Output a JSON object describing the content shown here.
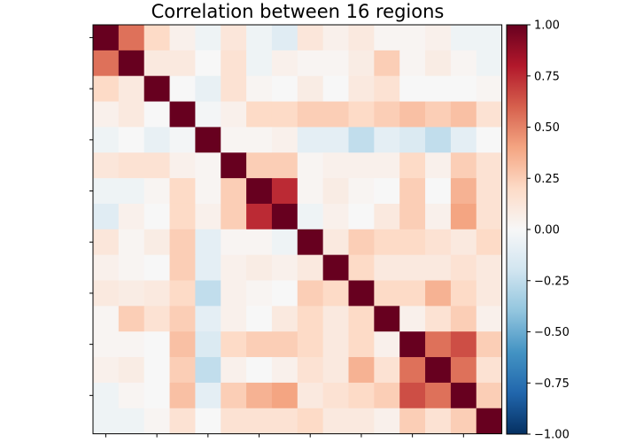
{
  "chart_data": {
    "type": "heatmap",
    "title": "Correlation between 16 regions",
    "xlabel": "",
    "ylabel": "",
    "colormap": "RdBu_r",
    "vmin": -1.0,
    "vmax": 1.0,
    "colorbar": {
      "ticks": [
        1.0,
        0.75,
        0.5,
        0.25,
        0.0,
        -0.25,
        -0.5,
        -0.75,
        -1.0
      ],
      "tick_labels": [
        "1.00",
        "0.75",
        "0.50",
        "0.25",
        "0.00",
        "−0.25",
        "−0.50",
        "−0.75",
        "−1.00"
      ]
    },
    "axis_tick_labels_shown": false,
    "grid": false,
    "matrix": [
      [
        1.0,
        0.55,
        0.2,
        0.05,
        -0.05,
        0.12,
        -0.05,
        -0.12,
        0.12,
        0.05,
        0.1,
        0.02,
        0.02,
        0.05,
        -0.05,
        -0.05
      ],
      [
        0.55,
        1.0,
        0.1,
        0.1,
        0.0,
        0.15,
        -0.05,
        0.05,
        0.02,
        0.02,
        0.08,
        0.25,
        0.02,
        0.08,
        0.02,
        -0.05
      ],
      [
        0.2,
        0.1,
        1.0,
        0.0,
        -0.08,
        0.15,
        0.02,
        0.0,
        0.08,
        0.0,
        0.1,
        0.15,
        0.0,
        0.0,
        0.0,
        0.02
      ],
      [
        0.05,
        0.1,
        0.0,
        1.0,
        -0.02,
        0.05,
        0.2,
        0.2,
        0.25,
        0.25,
        0.2,
        0.25,
        0.3,
        0.25,
        0.3,
        0.15
      ],
      [
        -0.05,
        0.0,
        -0.08,
        -0.02,
        1.0,
        0.02,
        0.02,
        0.05,
        -0.1,
        -0.1,
        -0.25,
        -0.1,
        -0.15,
        -0.25,
        -0.1,
        0.0
      ],
      [
        0.12,
        0.15,
        0.15,
        0.05,
        0.02,
        1.0,
        0.25,
        0.25,
        0.02,
        0.05,
        0.05,
        0.05,
        0.2,
        0.05,
        0.25,
        0.15
      ],
      [
        -0.05,
        -0.05,
        0.02,
        0.2,
        0.02,
        0.25,
        1.0,
        0.75,
        0.02,
        0.08,
        0.02,
        0.0,
        0.25,
        0.0,
        0.35,
        0.15
      ],
      [
        -0.12,
        0.05,
        0.0,
        0.2,
        0.05,
        0.25,
        0.75,
        1.0,
        -0.05,
        0.05,
        0.0,
        0.1,
        0.25,
        0.05,
        0.4,
        0.15
      ],
      [
        0.12,
        0.02,
        0.08,
        0.25,
        -0.1,
        0.02,
        0.02,
        -0.05,
        1.0,
        0.1,
        0.25,
        0.2,
        0.2,
        0.15,
        0.1,
        0.2
      ],
      [
        0.05,
        0.02,
        0.0,
        0.25,
        -0.1,
        0.05,
        0.08,
        0.05,
        0.1,
        1.0,
        0.2,
        0.1,
        0.1,
        0.1,
        0.15,
        0.1
      ],
      [
        0.1,
        0.08,
        0.1,
        0.2,
        -0.25,
        0.05,
        0.02,
        0.0,
        0.25,
        0.2,
        1.0,
        0.2,
        0.2,
        0.35,
        0.2,
        0.1
      ],
      [
        0.02,
        0.25,
        0.15,
        0.25,
        -0.1,
        0.05,
        0.0,
        0.1,
        0.2,
        0.1,
        0.2,
        1.0,
        0.05,
        0.15,
        0.25,
        0.05
      ],
      [
        0.02,
        0.02,
        0.0,
        0.3,
        -0.15,
        0.2,
        0.25,
        0.25,
        0.2,
        0.1,
        0.2,
        0.05,
        1.0,
        0.55,
        0.65,
        0.25
      ],
      [
        0.05,
        0.08,
        0.0,
        0.25,
        -0.25,
        0.05,
        0.0,
        0.05,
        0.15,
        0.1,
        0.35,
        0.15,
        0.55,
        1.0,
        0.55,
        0.15
      ],
      [
        -0.05,
        0.02,
        0.0,
        0.3,
        -0.1,
        0.25,
        0.35,
        0.4,
        0.1,
        0.15,
        0.2,
        0.25,
        0.65,
        0.55,
        1.0,
        0.25
      ],
      [
        -0.05,
        -0.05,
        0.02,
        0.15,
        0.0,
        0.15,
        0.15,
        0.15,
        0.2,
        0.1,
        0.1,
        0.05,
        0.25,
        0.15,
        0.25,
        1.0
      ]
    ]
  }
}
